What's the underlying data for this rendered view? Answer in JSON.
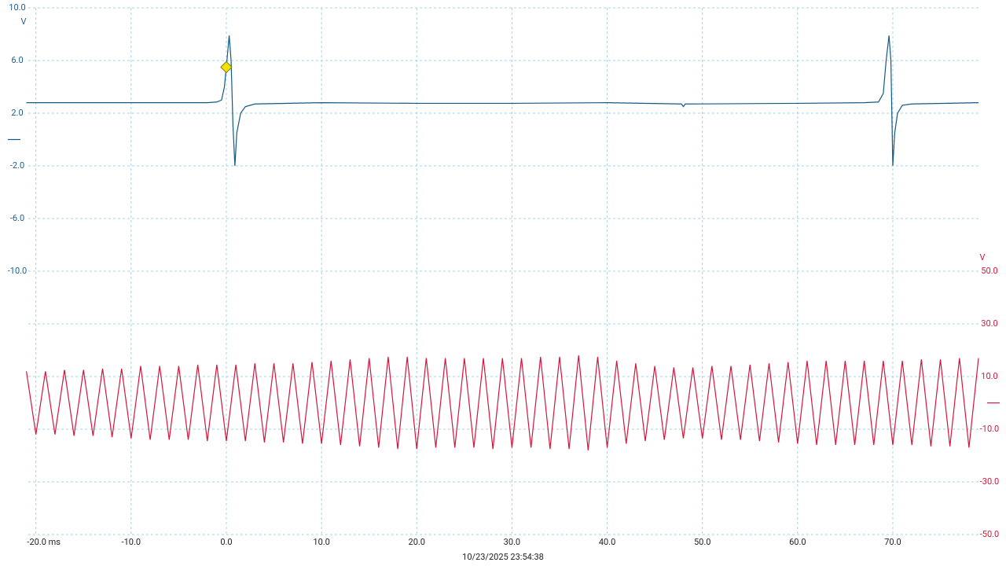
{
  "chart_data": {
    "type": "line",
    "timestamp": "10/23/2025 23:54:38",
    "xlim": [
      -20.8,
      79
    ],
    "xticks": [
      {
        "value": -20,
        "label": "-20.0 ms"
      },
      {
        "value": -10,
        "label": "-10.0"
      },
      {
        "value": 0,
        "label": "0.0"
      },
      {
        "value": 10,
        "label": "10.0"
      },
      {
        "value": 20,
        "label": "20.0"
      },
      {
        "value": 30,
        "label": "30.0"
      },
      {
        "value": 40,
        "label": "40.0"
      },
      {
        "value": 50,
        "label": "50.0"
      },
      {
        "value": 60,
        "label": "60.0"
      },
      {
        "value": 70,
        "label": "70.0"
      }
    ],
    "ylim": [
      -30,
      10
    ],
    "yunit": "V",
    "yticks": [
      {
        "value": 10,
        "label": "10.0"
      },
      {
        "value": 6,
        "label": "6.0"
      },
      {
        "value": 2,
        "label": "2.0"
      },
      {
        "value": -2,
        "label": "-2.0"
      },
      {
        "value": -6,
        "label": "-6.0"
      },
      {
        "value": -10,
        "label": "-10.0"
      }
    ],
    "y2lim": [
      -50,
      150
    ],
    "y2unit": "V",
    "y2ticks": [
      {
        "value": 50,
        "label": "50.0"
      },
      {
        "value": 30,
        "label": "30.0"
      },
      {
        "value": 10,
        "label": "10.0"
      },
      {
        "value": -10,
        "label": "-10.0"
      },
      {
        "value": -30,
        "label": "-30.0"
      },
      {
        "value": -50,
        "label": "-50.0"
      }
    ],
    "grid": true,
    "trigger": {
      "x": 0,
      "y": 5.5,
      "color": "#f2e20c"
    },
    "series": [
      {
        "color": "#0f5a86",
        "axis": "y",
        "offset": 0,
        "x": [
          -21,
          -10,
          -2,
          -1,
          -0.5,
          -0.2,
          0,
          0.3,
          0.5,
          0.7,
          0.9,
          1.1,
          1.5,
          2,
          3,
          10,
          20,
          30,
          40,
          47.8,
          48,
          48.2,
          60,
          67,
          68.5,
          69,
          69.3,
          69.6,
          69.8,
          70,
          70.2,
          70.5,
          71,
          72,
          79
        ],
        "values": [
          2.8,
          2.8,
          2.8,
          2.85,
          3.0,
          4.0,
          5.5,
          7.9,
          6.0,
          1.0,
          -2.0,
          0.5,
          2.0,
          2.5,
          2.7,
          2.8,
          2.75,
          2.75,
          2.8,
          2.7,
          2.5,
          2.7,
          2.75,
          2.8,
          2.85,
          3.5,
          6.0,
          7.9,
          6.0,
          -2.0,
          0.5,
          2.0,
          2.6,
          2.7,
          2.8
        ]
      },
      {
        "color": "#d4163c",
        "axis": "y2",
        "offset": 0,
        "x": [
          -21,
          -20,
          -19,
          -18,
          -17,
          -16,
          -15,
          -14,
          -13,
          -12,
          -11,
          -10,
          -9,
          -8,
          -7,
          -6,
          -5,
          -4,
          -3,
          -2,
          -1,
          0,
          1,
          2,
          3,
          4,
          5,
          6,
          7,
          8,
          9,
          10,
          11,
          12,
          13,
          14,
          15,
          16,
          17,
          18,
          19,
          20,
          21,
          22,
          23,
          24,
          25,
          26,
          27,
          28,
          29,
          30,
          31,
          32,
          33,
          34,
          35,
          36,
          37,
          38,
          39,
          40,
          41,
          42,
          43,
          44,
          45,
          46,
          47,
          48,
          49,
          50,
          51,
          52,
          53,
          54,
          55,
          56,
          57,
          58,
          59,
          60,
          61,
          62,
          63,
          64,
          65,
          66,
          67,
          68,
          69,
          70,
          71,
          72,
          73,
          74,
          75,
          76,
          77,
          78,
          79
        ],
        "values": [
          12,
          -12,
          12,
          -12,
          12.5,
          -12.5,
          12.5,
          -12.5,
          13,
          -13,
          13,
          -13.5,
          14,
          -14,
          14,
          -14,
          14,
          -14,
          14.5,
          -14.5,
          14.5,
          -14.5,
          14.5,
          -14.5,
          15,
          -15,
          15,
          -15,
          15,
          -15.5,
          15.5,
          -15.5,
          16,
          -16,
          16.5,
          -16.5,
          17,
          -17,
          17.5,
          -17.5,
          17.5,
          -17.5,
          17,
          -17,
          17,
          -17,
          17,
          -17,
          17,
          -17.5,
          17,
          -17,
          17,
          -17,
          17.5,
          -17.5,
          17.5,
          -17.5,
          18,
          -18,
          17.5,
          -17,
          16,
          -15.5,
          15,
          -14.5,
          14,
          -14,
          13.5,
          -13.5,
          13.5,
          -13.5,
          14,
          -14,
          14,
          -14,
          14.5,
          -14.5,
          15,
          -15,
          15.5,
          -15.5,
          16,
          -16,
          16,
          -16,
          16,
          -16,
          16,
          -16,
          16,
          -16,
          16,
          -16,
          16.5,
          -16.5,
          16.5,
          -16.5,
          17,
          -17,
          17
        ]
      }
    ]
  }
}
